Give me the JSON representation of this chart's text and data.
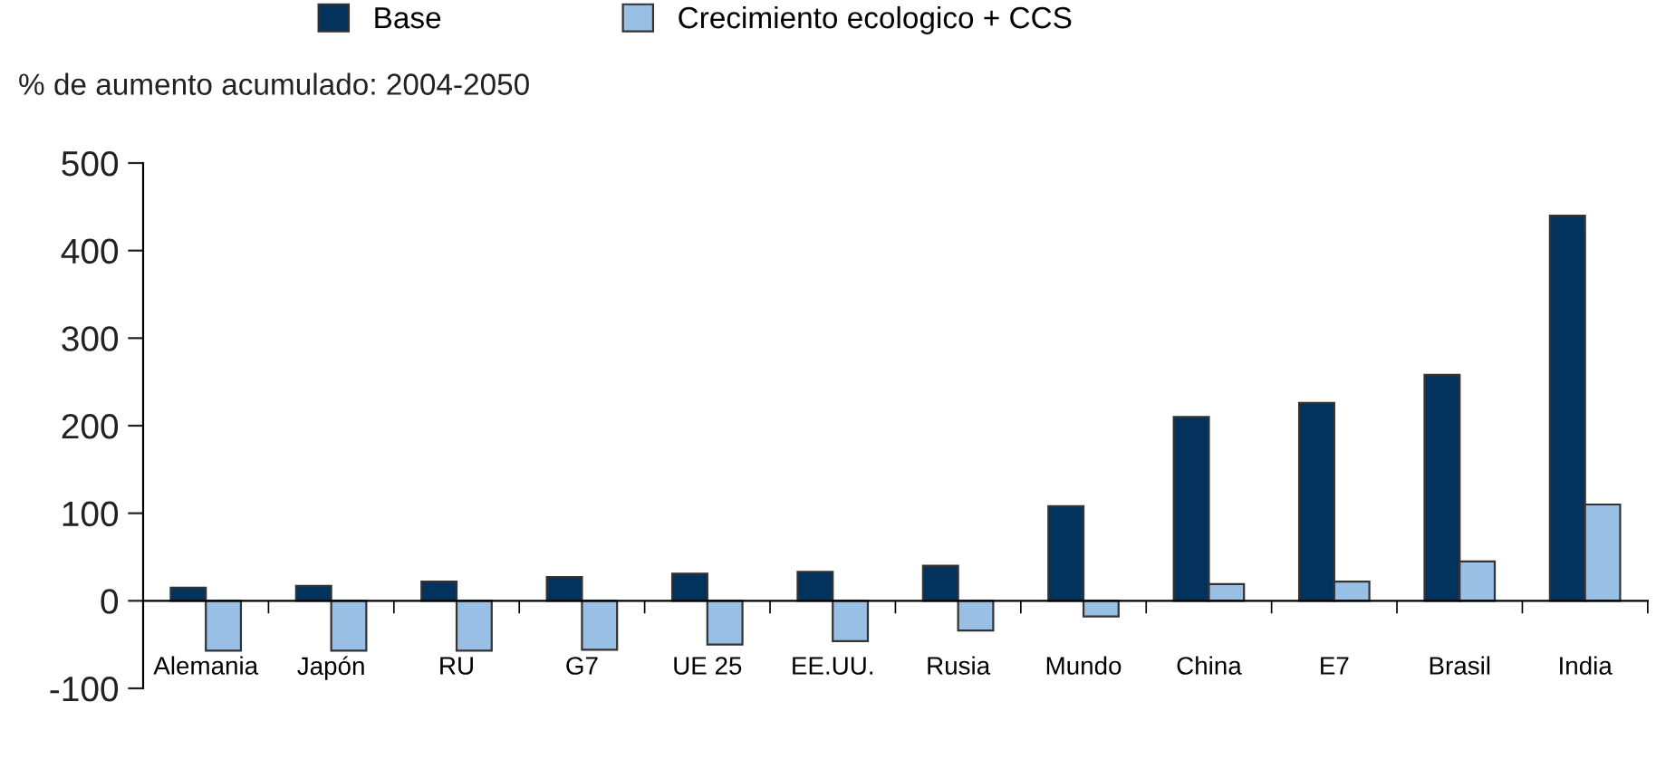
{
  "chart_data": {
    "type": "bar",
    "ylabel": "% de aumento acumulado: 2004-2050",
    "categories": [
      "Alemania",
      "Japón",
      "RU",
      "G7",
      "UE 25",
      "EE.UU.",
      "Rusia",
      "Mundo",
      "China",
      "E7",
      "Brasil",
      "India"
    ],
    "series": [
      {
        "name": "Base",
        "color": "#03325c",
        "values": [
          15,
          17,
          22,
          27,
          31,
          33,
          40,
          108,
          210,
          226,
          258,
          440
        ]
      },
      {
        "name": "Crecimiento ecologico + CCS",
        "color": "#99bfe5",
        "values": [
          -57,
          -57,
          -57,
          -56,
          -50,
          -46,
          -34,
          -18,
          19,
          22,
          45,
          110
        ]
      }
    ],
    "ylim": [
      -100,
      500
    ],
    "yticks": [
      -100,
      0,
      100,
      200,
      300,
      400,
      500
    ],
    "grid": false,
    "legend": "top"
  }
}
